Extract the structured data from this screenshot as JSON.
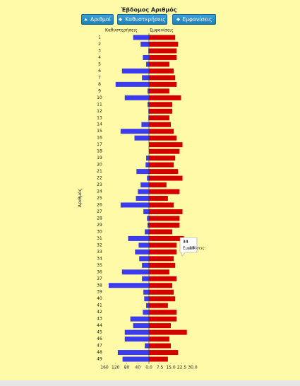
{
  "chart_data": {
    "type": "diverging-bar",
    "title": "Έβδομος Αριθμός",
    "buttons": [
      "Αριθμοί",
      "Καθυστερήσεις",
      "Εμφανίσεις"
    ],
    "y_label": "Αριθμός",
    "categories": [
      "1",
      "2",
      "3",
      "4",
      "5",
      "6",
      "7",
      "8",
      "9",
      "10",
      "11",
      "12",
      "13",
      "14",
      "15",
      "16",
      "17",
      "18",
      "19",
      "20",
      "21",
      "22",
      "23",
      "24",
      "25",
      "26",
      "27",
      "28",
      "29",
      "30",
      "31",
      "32",
      "33",
      "34",
      "35",
      "36",
      "37",
      "38",
      "39",
      "40",
      "41",
      "42",
      "43",
      "44",
      "45",
      "46",
      "47",
      "48",
      "49"
    ],
    "series": [
      {
        "name": "Καθυστερήσεις",
        "color": "#3b3bf0",
        "axis": "x",
        "values": [
          57,
          30,
          2,
          22,
          10,
          97,
          25,
          120,
          5,
          87,
          5,
          2,
          2,
          27,
          102,
          52,
          0,
          0,
          10,
          12,
          45,
          7,
          30,
          40,
          47,
          102,
          20,
          7,
          5,
          15,
          75,
          37,
          50,
          35,
          25,
          97,
          25,
          145,
          20,
          17,
          10,
          22,
          67,
          57,
          87,
          87,
          15,
          112,
          95
        ]
      },
      {
        "name": "Εμφανίσεις",
        "color": "#d40000",
        "axis": "x2",
        "values": [
          18,
          20,
          19,
          19,
          14,
          17,
          18,
          19,
          14,
          22,
          16,
          16,
          14,
          15,
          17,
          19,
          23,
          21,
          18,
          17,
          20,
          23,
          12,
          21,
          13,
          17,
          23,
          21,
          21,
          16,
          24,
          19,
          19,
          17,
          18,
          14,
          19,
          16,
          17,
          18,
          13,
          19,
          19,
          15,
          26,
          14,
          15,
          20,
          13
        ]
      }
    ],
    "xlim": [
      0,
      160
    ],
    "xticks": [
      160,
      120,
      80,
      40
    ],
    "x2lim": [
      0,
      30
    ],
    "x2ticks": [
      {
        "value": 0,
        "label": "0.0"
      },
      7.5,
      {
        "value": 15,
        "label": "15.0"
      },
      22.5,
      {
        "value": 30,
        "label": "30.0"
      }
    ],
    "tooltip": {
      "title": "34",
      "label": "Εμφανίσεις:",
      "value": 17
    }
  }
}
